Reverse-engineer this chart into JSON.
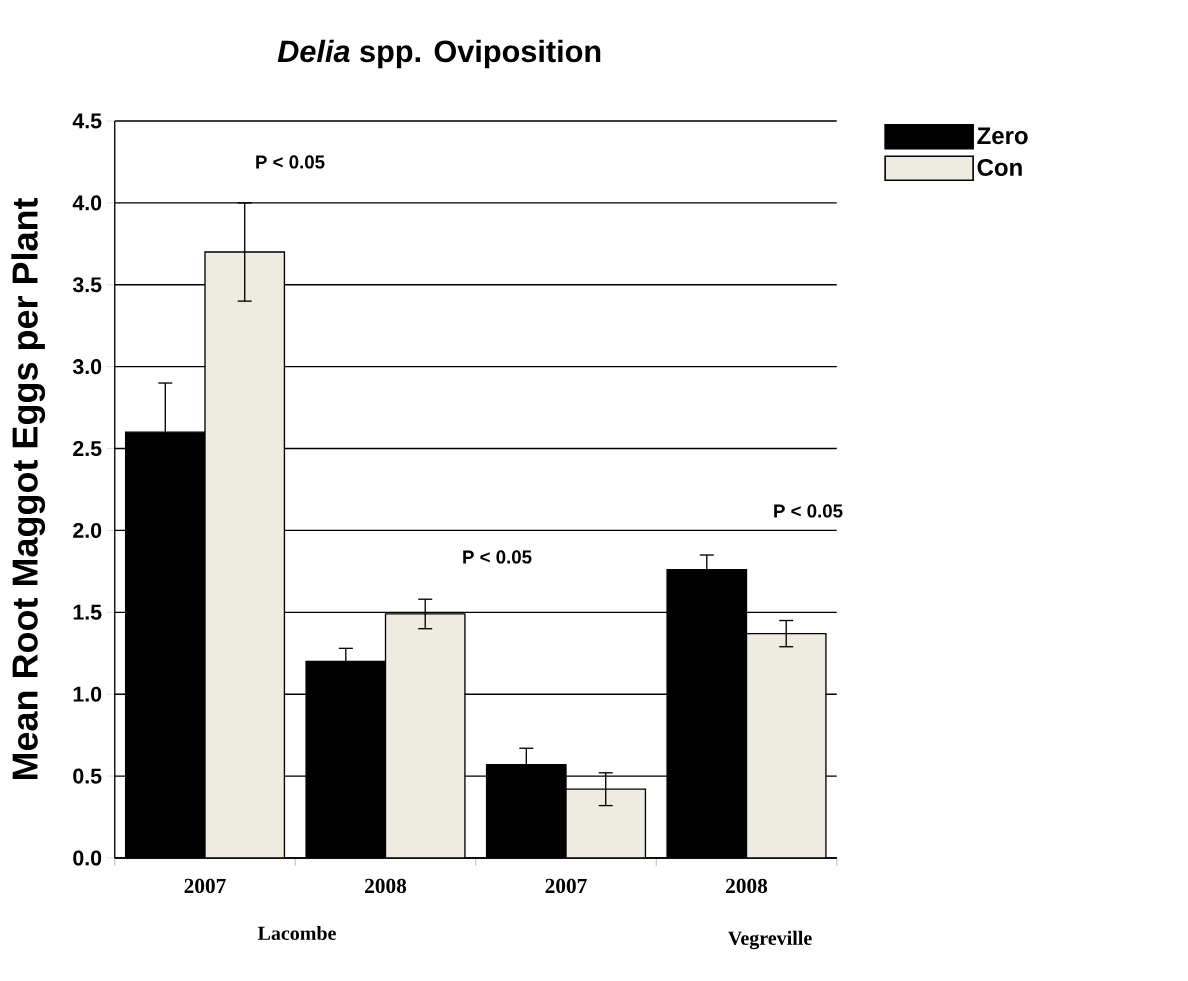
{
  "chart_data": {
    "type": "bar",
    "title": "*Delia* spp. Oviposition",
    "ylabel": "Mean Root Maggot Eggs per Plant",
    "categories": [
      "2007",
      "2008",
      "2007",
      "2008"
    ],
    "series": [
      {
        "name": "Zero",
        "color": "#000000",
        "values": [
          2.6,
          1.2,
          0.57,
          1.76
        ],
        "errors": [
          0.3,
          0.08,
          0.1,
          0.09
        ]
      },
      {
        "name": "Con",
        "color": "#eeece1",
        "values": [
          3.7,
          1.49,
          0.42,
          1.37
        ],
        "errors": [
          0.3,
          0.09,
          0.1,
          0.08
        ]
      }
    ],
    "ylim": [
      0,
      4.5
    ],
    "yticks": [
      {
        "value": 0,
        "label": "0.0"
      },
      0.5,
      {
        "value": 1,
        "label": "1.0"
      },
      1.5,
      {
        "value": 2,
        "label": "2.0"
      },
      2.5,
      {
        "value": 3,
        "label": "3.0"
      },
      3.5,
      {
        "value": 4,
        "label": "4.0"
      },
      4.5
    ],
    "grid": "y",
    "legend": "top right",
    "annotations": [
      "P < 0.05",
      "P < 0.05",
      "P < 0.05",
      "Lacombe",
      "Vegreville"
    ]
  }
}
